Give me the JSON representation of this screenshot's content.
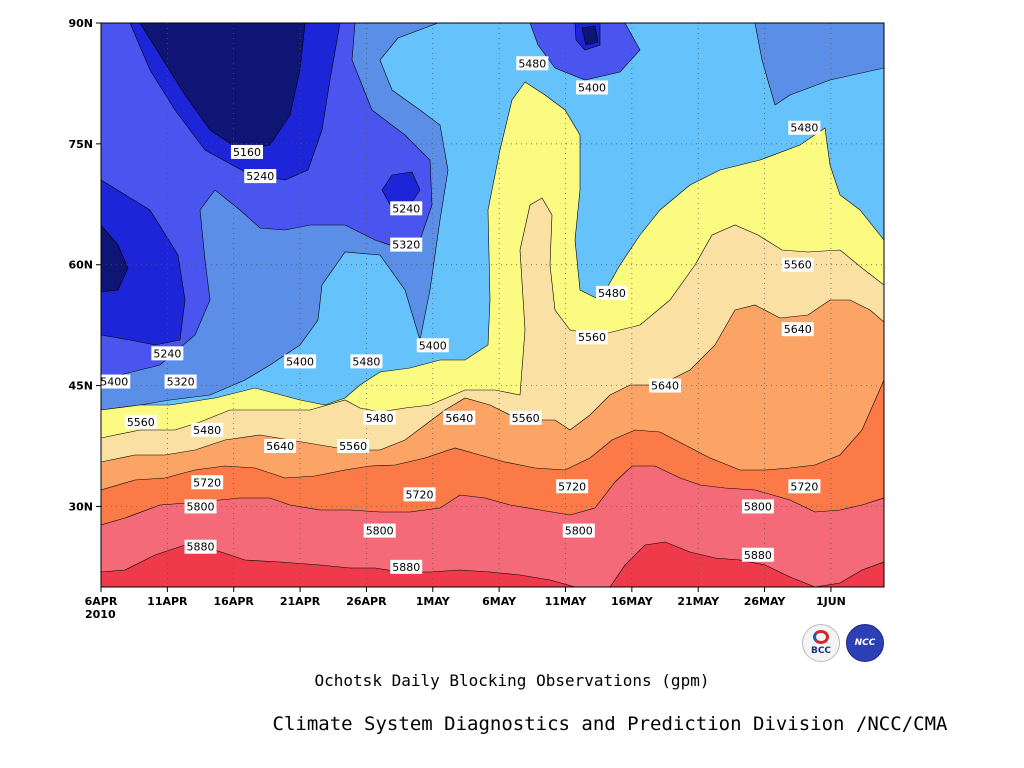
{
  "chart_data": {
    "type": "contour",
    "title": "Ochotsk Daily Blocking Observations (gpm)",
    "credit": "Climate System Diagnostics and Prediction Division /NCC/CMA",
    "x_tick_labels": [
      "6APR",
      "11APR",
      "16APR",
      "21APR",
      "26APR",
      "1MAY",
      "6MAY",
      "11MAY",
      "16MAY",
      "21MAY",
      "26MAY",
      "1JUN"
    ],
    "x_year_label": "2010",
    "x_range_days": [
      0,
      59
    ],
    "y_tick_labels": [
      "30N",
      "45N",
      "60N",
      "75N",
      "90N"
    ],
    "y_range_lat": [
      20,
      90
    ],
    "y_ticks_lat": [
      30,
      45,
      60,
      75,
      90
    ],
    "grid": true,
    "levels": [
      5160,
      5240,
      5320,
      5400,
      5480,
      5560,
      5640,
      5720,
      5800,
      5880
    ],
    "colors": {
      "lt5160": "#0e1575",
      "5160-5240": "#1c26d8",
      "5240-5320": "#4a55ef",
      "5320-5400": "#5b8ee6",
      "5400-5480": "#66c2fb",
      "5480-5560": "#fbfb82",
      "5560-5640": "#fbe0a3",
      "5640-5720": "#fca466",
      "5720-5800": "#fb7a48",
      "5800-5880": "#f46a78",
      "gt5880": "#ef3a4c"
    },
    "contour_labels": [
      {
        "value": "5160",
        "day": 11,
        "lat": 74
      },
      {
        "value": "5240",
        "day": 12,
        "lat": 71
      },
      {
        "value": "5240",
        "day": 23,
        "lat": 67
      },
      {
        "value": "5320",
        "day": 23,
        "lat": 62.5
      },
      {
        "value": "5480",
        "day": 32.5,
        "lat": 85
      },
      {
        "value": "5400",
        "day": 37,
        "lat": 82
      },
      {
        "value": "5480",
        "day": 53,
        "lat": 77
      },
      {
        "value": "5560",
        "day": 52.5,
        "lat": 60
      },
      {
        "value": "5480",
        "day": 38.5,
        "lat": 56.5
      },
      {
        "value": "5640",
        "day": 52.5,
        "lat": 52
      },
      {
        "value": "5560",
        "day": 37,
        "lat": 51
      },
      {
        "value": "5400",
        "day": 25,
        "lat": 50
      },
      {
        "value": "5400",
        "day": 15,
        "lat": 48
      },
      {
        "value": "5480",
        "day": 20,
        "lat": 48
      },
      {
        "value": "5240",
        "day": 5,
        "lat": 49
      },
      {
        "value": "5400",
        "day": 1,
        "lat": 45.5
      },
      {
        "value": "5320",
        "day": 6,
        "lat": 45.5
      },
      {
        "value": "5560",
        "day": 3,
        "lat": 40.5
      },
      {
        "value": "5480",
        "day": 8,
        "lat": 39.5
      },
      {
        "value": "5640",
        "day": 13.5,
        "lat": 37.5
      },
      {
        "value": "5560",
        "day": 19,
        "lat": 37.5
      },
      {
        "value": "5480",
        "day": 21,
        "lat": 41
      },
      {
        "value": "5640",
        "day": 27,
        "lat": 41
      },
      {
        "value": "5560",
        "day": 32,
        "lat": 41
      },
      {
        "value": "5640",
        "day": 42.5,
        "lat": 45
      },
      {
        "value": "5720",
        "day": 8,
        "lat": 33
      },
      {
        "value": "5800",
        "day": 7.5,
        "lat": 30
      },
      {
        "value": "5720",
        "day": 24,
        "lat": 31.5
      },
      {
        "value": "5720",
        "day": 35.5,
        "lat": 32.5
      },
      {
        "value": "5720",
        "day": 53,
        "lat": 32.5
      },
      {
        "value": "5800",
        "day": 21,
        "lat": 27
      },
      {
        "value": "5800",
        "day": 36,
        "lat": 27
      },
      {
        "value": "5800",
        "day": 49.5,
        "lat": 30
      },
      {
        "value": "5880",
        "day": 7.5,
        "lat": 25
      },
      {
        "value": "5880",
        "day": 23,
        "lat": 22.5
      },
      {
        "value": "5880",
        "day": 49.5,
        "lat": 24
      }
    ]
  },
  "logos": {
    "bcc_text": "BCC",
    "ncc_text": "NCC"
  }
}
